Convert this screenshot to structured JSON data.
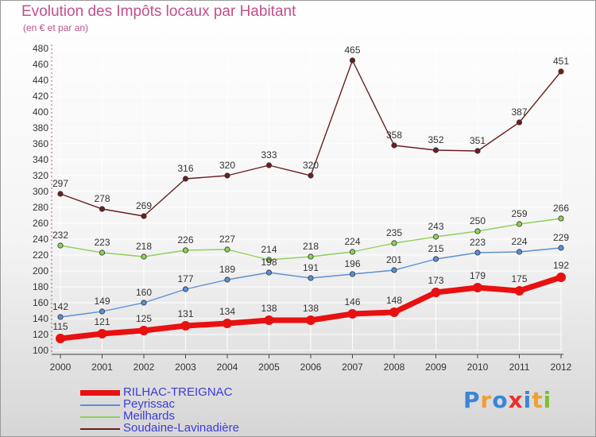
{
  "title": "Evolution des Impôts locaux par Habitant",
  "subtitle": "(en € et par an)",
  "brand": {
    "letters": [
      "P",
      "r",
      "o",
      "x",
      "i",
      "t",
      "i"
    ],
    "colors": [
      "#3a86d8",
      "#f0a030",
      "#3a86d8",
      "#e83030",
      "#3a86d8",
      "#f0a030",
      "#7cc030"
    ]
  },
  "chart_data": {
    "type": "line",
    "title": "Evolution des Impôts locaux par Habitant",
    "subtitle": "(en € et par an)",
    "xlabel": "",
    "ylabel": "",
    "ylim": [
      100,
      480
    ],
    "yticks": [
      100,
      120,
      140,
      160,
      180,
      200,
      220,
      240,
      260,
      280,
      300,
      320,
      340,
      360,
      380,
      400,
      420,
      440,
      460,
      480
    ],
    "x": [
      "2000",
      "2001",
      "2002",
      "2003",
      "2004",
      "2005",
      "2006",
      "2007",
      "2008",
      "2009",
      "2010",
      "2011",
      "2012"
    ],
    "grid": true,
    "legend_position": "bottom-left",
    "series": [
      {
        "name": "Soudaine-Lavinadière",
        "color": "#6b1e1e",
        "values": [
          297,
          278,
          269,
          316,
          320,
          333,
          320,
          465,
          358,
          352,
          351,
          387,
          451
        ]
      },
      {
        "name": "Meilhards",
        "color": "#8fd05a",
        "values": [
          232,
          223,
          218,
          226,
          227,
          214,
          218,
          224,
          235,
          243,
          250,
          259,
          266
        ]
      },
      {
        "name": "Peyrissac",
        "color": "#5a8fd4",
        "values": [
          142,
          149,
          160,
          177,
          189,
          198,
          191,
          196,
          201,
          215,
          223,
          224,
          229
        ]
      },
      {
        "name": "RILHAC-TREIGNAC",
        "color": "#e81010",
        "values": [
          115,
          121,
          125,
          131,
          134,
          138,
          138,
          146,
          148,
          173,
          179,
          175,
          192
        ]
      }
    ]
  },
  "legend": [
    {
      "label": "RILHAC-TREIGNAC",
      "color": "#e81010"
    },
    {
      "label": "Peyrissac",
      "color": "#5a8fd4"
    },
    {
      "label": "Meilhards",
      "color": "#8fd05a"
    },
    {
      "label": "Soudaine-Lavinadière",
      "color": "#6b1e1e"
    }
  ]
}
